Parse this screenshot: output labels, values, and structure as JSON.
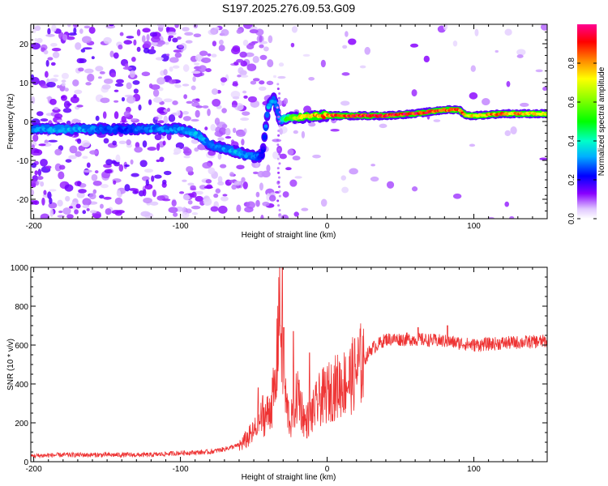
{
  "title": "S197.2025.276.09.53.G09",
  "chart_data": [
    {
      "type": "heatmap",
      "name": "spectrogram",
      "xlabel": "Height of straight line (km)",
      "ylabel": "Frequency (Hz)",
      "xlim": [
        -202,
        150
      ],
      "ylim": [
        -25,
        25
      ],
      "xticks": [
        -200,
        -100,
        0,
        100
      ],
      "xtick_labels": [
        "-200",
        "-100",
        "0",
        "100"
      ],
      "yticks": [
        -20,
        -10,
        0,
        10,
        20
      ],
      "ytick_labels": [
        "-20",
        "-10",
        "0",
        "10",
        "20"
      ],
      "colorbar": {
        "label": "Normalized spectral amplitude",
        "range": [
          0,
          1
        ],
        "ticks": [
          0.0,
          0.2,
          0.4,
          0.6,
          0.8
        ],
        "tick_labels": [
          "0.0",
          "0.2",
          "0.4",
          "0.6",
          "0.8"
        ]
      },
      "ridge": {
        "x": [
          -200,
          -180,
          -160,
          -140,
          -120,
          -100,
          -90,
          -80,
          -70,
          -60,
          -55,
          -50,
          -46,
          -44,
          -40,
          -36,
          -32,
          -28,
          -20,
          0,
          20,
          40,
          60,
          70,
          80,
          90,
          95,
          100,
          120,
          150
        ],
        "freq": [
          -2,
          -2,
          -2,
          -2,
          -2,
          -2,
          -3,
          -6,
          -7,
          -8,
          -8.5,
          -9,
          -9,
          -8,
          4,
          6,
          0,
          1,
          1,
          1.5,
          1.5,
          1.5,
          2,
          2.5,
          3,
          3,
          1.5,
          1.5,
          2,
          2
        ],
        "amplitude": [
          0.3,
          0.35,
          0.3,
          0.25,
          0.3,
          0.3,
          0.35,
          0.3,
          0.3,
          0.35,
          0.3,
          0.3,
          0.25,
          0.2,
          0.35,
          0.3,
          0.3,
          0.55,
          0.7,
          0.85,
          0.95,
          0.95,
          0.95,
          0.9,
          0.9,
          0.9,
          0.75,
          0.75,
          0.85,
          0.7
        ]
      }
    },
    {
      "type": "line",
      "name": "snr",
      "xlabel": "Height of straight line (km)",
      "ylabel": "SNR (10 * v/v)",
      "xlim": [
        -202,
        150
      ],
      "ylim": [
        0,
        1000
      ],
      "xticks": [
        -200,
        -100,
        0,
        100
      ],
      "xtick_labels": [
        "-200",
        "-100",
        "0",
        "100"
      ],
      "yticks": [
        0,
        200,
        400,
        600,
        800,
        1000
      ],
      "ytick_labels": [
        "0",
        "200",
        "400",
        "600",
        "800",
        "1000"
      ],
      "color": "#ee3333",
      "series": [
        {
          "name": "SNR",
          "x": [
            -202,
            -180,
            -160,
            -140,
            -120,
            -100,
            -80,
            -70,
            -60,
            -50,
            -45,
            -40,
            -35,
            -33,
            -31,
            -30,
            -28,
            -25,
            -20,
            -15,
            -10,
            -5,
            0,
            5,
            10,
            15,
            20,
            25,
            30,
            40,
            60,
            80,
            100,
            120,
            150
          ],
          "y": [
            25,
            30,
            30,
            30,
            30,
            40,
            45,
            60,
            80,
            150,
            220,
            250,
            380,
            800,
            650,
            450,
            300,
            200,
            350,
            200,
            250,
            320,
            350,
            380,
            400,
            420,
            470,
            520,
            580,
            630,
            630,
            620,
            600,
            610,
            620
          ],
          "spikes": [
            {
              "x": -47,
              "y": 380
            },
            {
              "x": -44,
              "y": 340
            },
            {
              "x": -32,
              "y": 700
            },
            {
              "x": -30.5,
              "y": 1000
            },
            {
              "x": -29.5,
              "y": 690
            },
            {
              "x": -23,
              "y": 670
            },
            {
              "x": -19,
              "y": 420
            },
            {
              "x": -12,
              "y": 560
            },
            {
              "x": 82,
              "y": 700
            },
            {
              "x": 62,
              "y": 690
            }
          ]
        }
      ]
    }
  ]
}
